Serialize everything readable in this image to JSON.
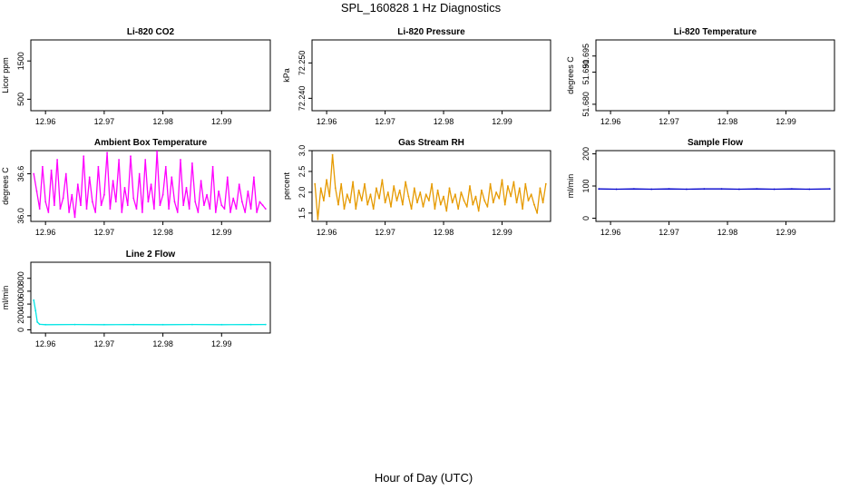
{
  "title": "SPL_160828  1 Hz Diagnostics",
  "xlabel": "Hour of Day (UTC)",
  "colors": {
    "background": "#ffffff",
    "axis": "#000000",
    "ambient": "#ff00ff",
    "rh": "#e69a00",
    "sample_flow": "#0000cc",
    "line2_flow": "#00e5e5"
  },
  "chart_data": [
    {
      "type": "line",
      "title": "Li-820 CO2",
      "ylabel": "Licor ppm",
      "xlim": [
        12.9575,
        12.9983
      ],
      "ylim": [
        200,
        2050
      ],
      "xticks": [
        12.96,
        12.97,
        12.98,
        12.99
      ],
      "xtick_labels": [
        "12.96",
        "12.97",
        "12.98",
        "12.99"
      ],
      "yticks": [
        500,
        1500
      ],
      "ytick_labels": [
        "500",
        "1500"
      ],
      "series": []
    },
    {
      "type": "line",
      "title": "Li-820 Pressure",
      "ylabel": "kPa",
      "xlim": [
        12.9575,
        12.9983
      ],
      "ylim": [
        72.2365,
        72.2565
      ],
      "xticks": [
        12.96,
        12.97,
        12.98,
        12.99
      ],
      "xtick_labels": [
        "12.96",
        "12.97",
        "12.98",
        "12.99"
      ],
      "yticks": [
        72.24,
        72.25
      ],
      "ytick_labels": [
        "72.240",
        "72.250"
      ],
      "series": []
    },
    {
      "type": "line",
      "title": "Li-820 Temperature",
      "ylabel": "degrees C",
      "xlim": [
        12.9575,
        12.9983
      ],
      "ylim": [
        51.678,
        51.7
      ],
      "xticks": [
        12.96,
        12.97,
        12.98,
        12.99
      ],
      "xtick_labels": [
        "12.96",
        "12.97",
        "12.98",
        "12.99"
      ],
      "yticks": [
        51.68,
        51.69,
        51.695
      ],
      "ytick_labels": [
        "51.680",
        "51.690",
        "51.695"
      ],
      "series": []
    },
    {
      "type": "line",
      "title": "Ambient Box Temperature",
      "ylabel": "degrees C",
      "xlim": [
        12.9575,
        12.9983
      ],
      "ylim": [
        35.92,
        36.93
      ],
      "xticks": [
        12.96,
        12.97,
        12.98,
        12.99
      ],
      "xtick_labels": [
        "12.96",
        "12.97",
        "12.98",
        "12.99"
      ],
      "yticks": [
        36.0,
        36.6
      ],
      "ytick_labels": [
        "36.0",
        "36.6"
      ],
      "series": [
        {
          "name": "Ambient Box Temperature",
          "color": "#ff00ff",
          "x": [
            12.958,
            12.9585,
            12.959,
            12.9595,
            12.96,
            12.9605,
            12.961,
            12.9615,
            12.962,
            12.9625,
            12.963,
            12.9635,
            12.964,
            12.9645,
            12.965,
            12.9655,
            12.966,
            12.9665,
            12.967,
            12.9675,
            12.968,
            12.9685,
            12.969,
            12.9695,
            12.97,
            12.9705,
            12.971,
            12.9715,
            12.972,
            12.9725,
            12.973,
            12.9735,
            12.974,
            12.9745,
            12.975,
            12.9755,
            12.976,
            12.9765,
            12.977,
            12.9775,
            12.978,
            12.9785,
            12.979,
            12.9795,
            12.98,
            12.9805,
            12.981,
            12.9815,
            12.982,
            12.9825,
            12.983,
            12.9835,
            12.984,
            12.9845,
            12.985,
            12.9855,
            12.986,
            12.9865,
            12.987,
            12.9875,
            12.988,
            12.9885,
            12.989,
            12.9895,
            12.99,
            12.9905,
            12.991,
            12.9915,
            12.992,
            12.9925,
            12.993,
            12.9935,
            12.994,
            12.9945,
            12.995,
            12.9955,
            12.996,
            12.9965,
            12.997,
            12.9975
          ],
          "values": [
            36.6,
            36.35,
            36.1,
            36.7,
            36.2,
            36.05,
            36.65,
            36.15,
            36.8,
            36.1,
            36.25,
            36.6,
            36.05,
            36.3,
            35.98,
            36.45,
            36.15,
            36.85,
            36.1,
            36.55,
            36.2,
            36.05,
            36.7,
            36.15,
            36.3,
            36.9,
            36.1,
            36.5,
            36.2,
            36.8,
            36.05,
            36.4,
            36.15,
            36.85,
            36.25,
            36.1,
            36.6,
            36.05,
            36.8,
            36.2,
            36.45,
            36.1,
            36.92,
            36.15,
            36.3,
            36.7,
            36.1,
            36.55,
            36.2,
            36.05,
            36.8,
            36.15,
            36.4,
            36.1,
            36.75,
            36.2,
            36.05,
            36.5,
            36.15,
            36.3,
            36.1,
            36.7,
            36.05,
            36.35,
            36.15,
            36.1,
            36.55,
            36.05,
            36.25,
            36.1,
            36.45,
            36.2,
            36.05,
            36.35,
            36.1,
            36.55,
            36.05,
            36.2,
            36.15,
            36.1
          ]
        }
      ]
    },
    {
      "type": "line",
      "title": "Gas Stream RH",
      "ylabel": "percent",
      "xlim": [
        12.9575,
        12.9983
      ],
      "ylim": [
        1.3,
        3.0
      ],
      "xticks": [
        12.96,
        12.97,
        12.98,
        12.99
      ],
      "xtick_labels": [
        "12.96",
        "12.97",
        "12.98",
        "12.99"
      ],
      "yticks": [
        1.5,
        2.0,
        2.5,
        3.0
      ],
      "ytick_labels": [
        "1.5",
        "2.0",
        "2.5",
        "3.0"
      ],
      "series": [
        {
          "name": "Gas Stream RH",
          "color": "#e69a00",
          "x": [
            12.958,
            12.9585,
            12.959,
            12.9595,
            12.96,
            12.9605,
            12.961,
            12.9615,
            12.962,
            12.9625,
            12.963,
            12.9635,
            12.964,
            12.9645,
            12.965,
            12.9655,
            12.966,
            12.9665,
            12.967,
            12.9675,
            12.968,
            12.9685,
            12.969,
            12.9695,
            12.97,
            12.9705,
            12.971,
            12.9715,
            12.972,
            12.9725,
            12.973,
            12.9735,
            12.974,
            12.9745,
            12.975,
            12.9755,
            12.976,
            12.9765,
            12.977,
            12.9775,
            12.978,
            12.9785,
            12.979,
            12.9795,
            12.98,
            12.9805,
            12.981,
            12.9815,
            12.982,
            12.9825,
            12.983,
            12.9835,
            12.984,
            12.9845,
            12.985,
            12.9855,
            12.986,
            12.9865,
            12.987,
            12.9875,
            12.988,
            12.9885,
            12.989,
            12.9895,
            12.99,
            12.9905,
            12.991,
            12.9915,
            12.992,
            12.9925,
            12.993,
            12.9935,
            12.994,
            12.9945,
            12.995,
            12.9955,
            12.996,
            12.9965,
            12.997,
            12.9975
          ],
          "values": [
            2.2,
            1.35,
            2.1,
            1.8,
            2.3,
            1.9,
            2.9,
            2.1,
            1.7,
            2.2,
            1.6,
            1.95,
            1.75,
            2.25,
            1.6,
            2.05,
            1.8,
            2.2,
            1.7,
            1.95,
            1.6,
            2.1,
            1.85,
            2.3,
            1.75,
            2.0,
            1.65,
            2.15,
            1.8,
            2.05,
            1.7,
            2.25,
            1.9,
            1.6,
            2.1,
            1.75,
            2.0,
            1.65,
            1.95,
            1.8,
            2.2,
            1.6,
            2.05,
            1.7,
            1.9,
            1.55,
            2.1,
            1.75,
            1.95,
            1.6,
            2.0,
            1.8,
            1.65,
            2.15,
            1.7,
            1.9,
            1.55,
            2.05,
            1.8,
            1.65,
            2.2,
            1.75,
            2.0,
            1.85,
            2.3,
            1.7,
            2.15,
            1.9,
            2.25,
            1.75,
            2.1,
            1.6,
            2.2,
            1.8,
            1.95,
            1.7,
            1.5,
            2.1,
            1.75,
            2.2
          ]
        }
      ]
    },
    {
      "type": "line",
      "title": "Sample Flow",
      "ylabel": "ml/min",
      "xlim": [
        12.9575,
        12.9983
      ],
      "ylim": [
        -10,
        210
      ],
      "xticks": [
        12.96,
        12.97,
        12.98,
        12.99
      ],
      "xtick_labels": [
        "12.96",
        "12.97",
        "12.98",
        "12.99"
      ],
      "yticks": [
        0,
        100,
        200
      ],
      "ytick_labels": [
        "0",
        "100",
        "200"
      ],
      "series": [
        {
          "name": "Sample Flow",
          "color": "#0000cc",
          "x": [
            12.958,
            12.961,
            12.964,
            12.967,
            12.97,
            12.973,
            12.976,
            12.979,
            12.982,
            12.985,
            12.988,
            12.991,
            12.994,
            12.9975
          ],
          "values": [
            91,
            90,
            91,
            90,
            91,
            90,
            91,
            91,
            90,
            91,
            90,
            91,
            90,
            91
          ]
        }
      ]
    },
    {
      "type": "line",
      "title": "Line 2 Flow",
      "ylabel": "ml/min",
      "xlim": [
        12.9575,
        12.9983
      ],
      "ylim": [
        -50,
        1050
      ],
      "xticks": [
        12.96,
        12.97,
        12.98,
        12.99
      ],
      "xtick_labels": [
        "12.96",
        "12.97",
        "12.98",
        "12.99"
      ],
      "yticks": [
        0,
        200,
        400,
        600,
        800
      ],
      "ytick_labels": [
        "0",
        "200",
        "400",
        "600",
        "800"
      ],
      "series": [
        {
          "name": "Line 2 Flow",
          "color": "#00e5e5",
          "x": [
            12.958,
            12.9583,
            12.9586,
            12.959,
            12.96,
            12.965,
            12.97,
            12.975,
            12.98,
            12.985,
            12.99,
            12.995,
            12.9975
          ],
          "values": [
            460,
            300,
            120,
            85,
            80,
            82,
            80,
            81,
            80,
            82,
            80,
            81,
            82
          ]
        }
      ]
    }
  ]
}
